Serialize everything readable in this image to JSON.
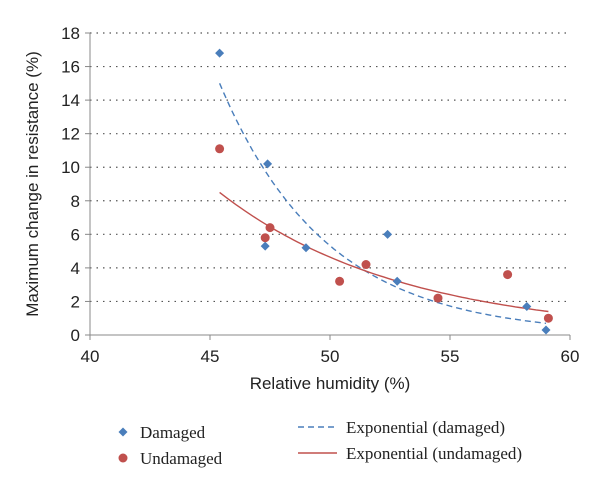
{
  "chart_data": {
    "type": "scatter",
    "title": "",
    "xlabel": "Relative humidity (%)",
    "ylabel": "Maximum change in resistance (%)",
    "xlim": [
      40,
      60
    ],
    "ylim": [
      0,
      18
    ],
    "xticks": [
      40,
      45,
      50,
      55,
      60
    ],
    "yticks": [
      0,
      2,
      4,
      6,
      8,
      10,
      12,
      14,
      16,
      18
    ],
    "grid": "horizontal dotted",
    "series": [
      {
        "name": "Damaged",
        "marker": "diamond",
        "color": "#4a7ebb",
        "points": [
          [
            45.4,
            16.8
          ],
          [
            47.4,
            10.2
          ],
          [
            47.3,
            5.3
          ],
          [
            49.0,
            5.2
          ],
          [
            52.4,
            6.0
          ],
          [
            52.8,
            3.2
          ],
          [
            58.2,
            1.7
          ],
          [
            59.0,
            0.3
          ]
        ]
      },
      {
        "name": "Undamaged",
        "marker": "circle",
        "color": "#c0504d",
        "points": [
          [
            45.4,
            11.1
          ],
          [
            47.3,
            5.8
          ],
          [
            47.5,
            6.4
          ],
          [
            50.4,
            3.2
          ],
          [
            51.5,
            4.2
          ],
          [
            54.5,
            2.2
          ],
          [
            57.4,
            3.6
          ],
          [
            59.1,
            1.0
          ]
        ]
      }
    ],
    "trendlines": [
      {
        "name": "Exponential (damaged)",
        "color": "#4a7ebb",
        "style": "dashed",
        "x_range": [
          45.4,
          59.0
        ],
        "y_range": [
          15.0,
          0.7
        ]
      },
      {
        "name": "Exponential (undamaged)",
        "color": "#c0504d",
        "style": "solid",
        "x_range": [
          45.4,
          59.1
        ],
        "y_range": [
          8.5,
          1.4
        ]
      }
    ],
    "legend": {
      "placement": "bottom",
      "entries": [
        "Damaged",
        "Undamaged",
        "Exponential (damaged)",
        "Exponential (undamaged)"
      ]
    }
  }
}
